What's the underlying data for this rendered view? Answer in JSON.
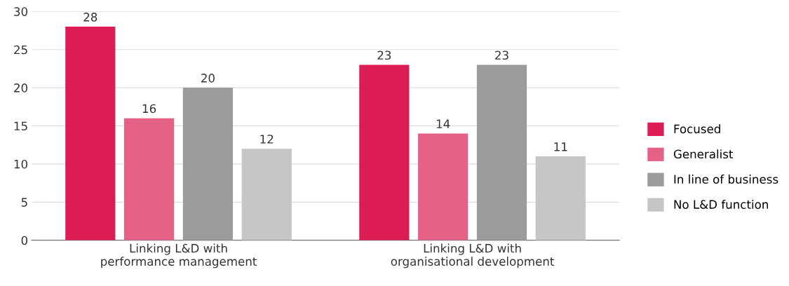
{
  "chart_data": {
    "type": "bar",
    "categories": [
      "Linking L&D with performance management",
      "Linking L&D with organisational development"
    ],
    "series": [
      {
        "name": "Focused",
        "color": "#db1d53",
        "values": [
          28,
          23
        ]
      },
      {
        "name": "Generalist",
        "color": "#e66186",
        "values": [
          16,
          14
        ]
      },
      {
        "name": "In line of business",
        "color": "#9b9a9c",
        "values": [
          20,
          23
        ]
      },
      {
        "name": "No L&D function",
        "color": "#c6c6c6",
        "values": [
          12,
          11
        ]
      }
    ],
    "ylim": [
      0,
      30
    ],
    "yticks": [
      0,
      5,
      10,
      15,
      20,
      25,
      30
    ],
    "grid": "y",
    "legend": "right",
    "data_labels": true
  }
}
